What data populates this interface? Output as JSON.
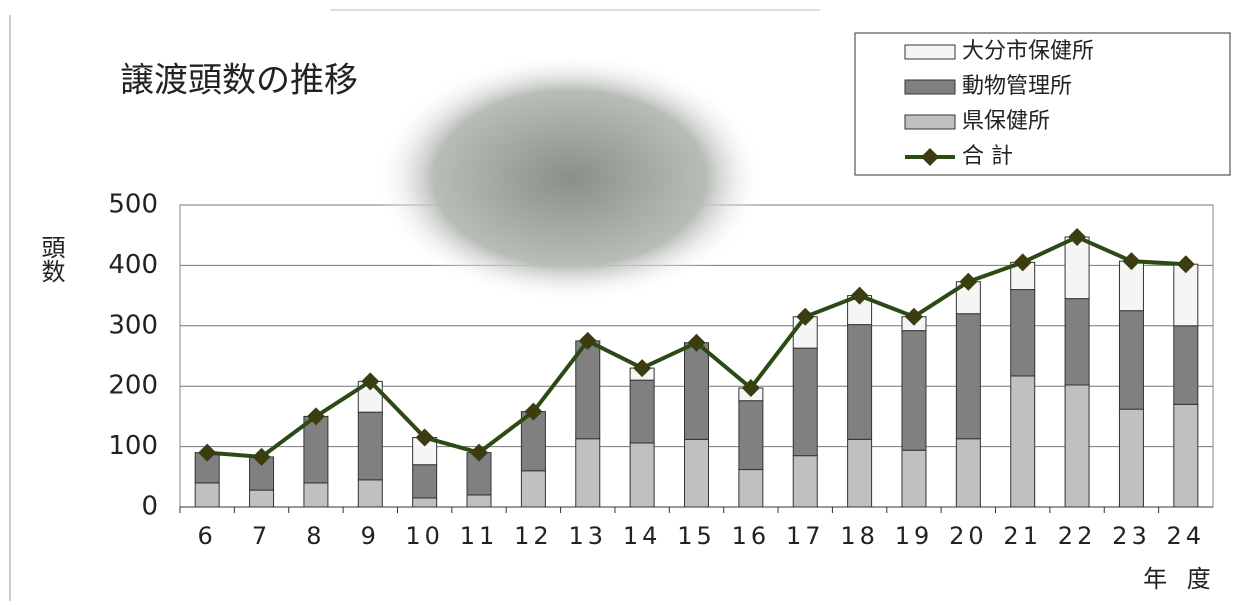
{
  "chart_data": {
    "type": "bar",
    "stacked": true,
    "title": "譲渡頭数の推移",
    "y_label": "頭数",
    "x_label": "年 度",
    "categories": [
      "6",
      "7",
      "8",
      "9",
      "10",
      "11",
      "12",
      "13",
      "14",
      "15",
      "16",
      "17",
      "18",
      "19",
      "20",
      "21",
      "22",
      "23",
      "24"
    ],
    "series": [
      {
        "name": "県保健所",
        "type": "bar",
        "color": "#c0c0c0",
        "values": [
          40,
          28,
          40,
          45,
          15,
          20,
          60,
          113,
          106,
          112,
          62,
          85,
          112,
          94,
          113,
          217,
          202,
          162,
          170
        ]
      },
      {
        "name": "動物管理所",
        "type": "bar",
        "color": "#808080",
        "values": [
          50,
          55,
          110,
          112,
          55,
          70,
          98,
          162,
          104,
          160,
          114,
          178,
          190,
          198,
          207,
          143,
          143,
          163,
          130
        ]
      },
      {
        "name": "大分市保健所",
        "type": "bar",
        "color": "#f5f5f5",
        "values": [
          0,
          0,
          0,
          51,
          45,
          0,
          0,
          0,
          20,
          0,
          21,
          52,
          48,
          23,
          53,
          45,
          102,
          82,
          102
        ]
      },
      {
        "name": "合 計",
        "type": "line",
        "color": "#2b4a14",
        "values": [
          90,
          83,
          150,
          208,
          115,
          90,
          158,
          275,
          230,
          272,
          197,
          315,
          350,
          315,
          373,
          405,
          447,
          407,
          402
        ]
      }
    ],
    "ylim": [
      0,
      500
    ],
    "yticks": [
      0,
      100,
      200,
      300,
      400,
      500
    ],
    "grid": true,
    "legend": "top-right"
  }
}
